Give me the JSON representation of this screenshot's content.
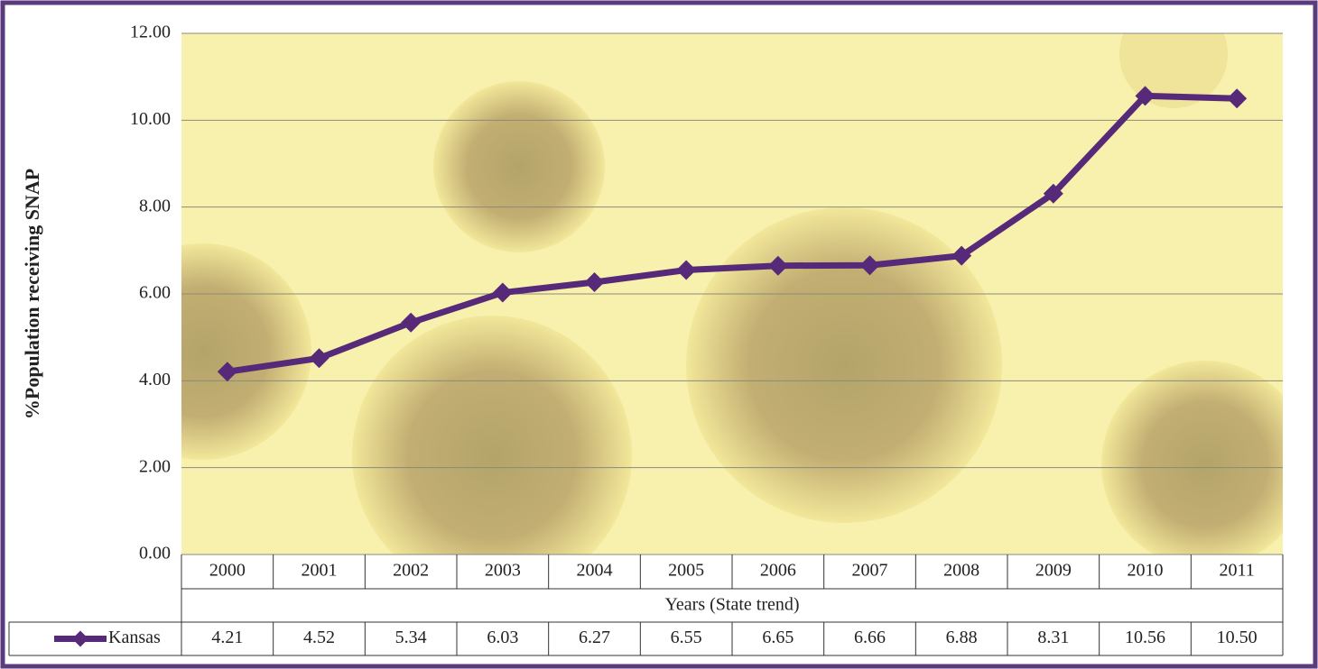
{
  "chart_data": {
    "type": "line",
    "y_label": "%Population receiving SNAP",
    "x_label": "Years (State trend)",
    "categories": [
      "2000",
      "2001",
      "2002",
      "2003",
      "2004",
      "2005",
      "2006",
      "2007",
      "2008",
      "2009",
      "2010",
      "2011"
    ],
    "series": [
      {
        "name": "Kansas",
        "color": "#562a78",
        "values": [
          4.21,
          4.52,
          5.34,
          6.03,
          6.27,
          6.55,
          6.65,
          6.66,
          6.88,
          8.31,
          10.56,
          10.5
        ],
        "value_labels": [
          "4.21",
          "4.52",
          "5.34",
          "6.03",
          "6.27",
          "6.55",
          "6.65",
          "6.66",
          "6.88",
          "8.31",
          "10.56",
          "10.50"
        ]
      }
    ],
    "ylim": [
      0,
      12
    ],
    "yticks": [
      {
        "value": 0,
        "label": "0.00"
      },
      {
        "value": 2,
        "label": "2.00"
      },
      {
        "value": 4,
        "label": "4.00"
      },
      {
        "value": 6,
        "label": "6.00"
      },
      {
        "value": 8,
        "label": "8.00"
      },
      {
        "value": 10,
        "label": "10.00"
      },
      {
        "value": 12,
        "label": "12.00"
      }
    ],
    "grid": true
  }
}
